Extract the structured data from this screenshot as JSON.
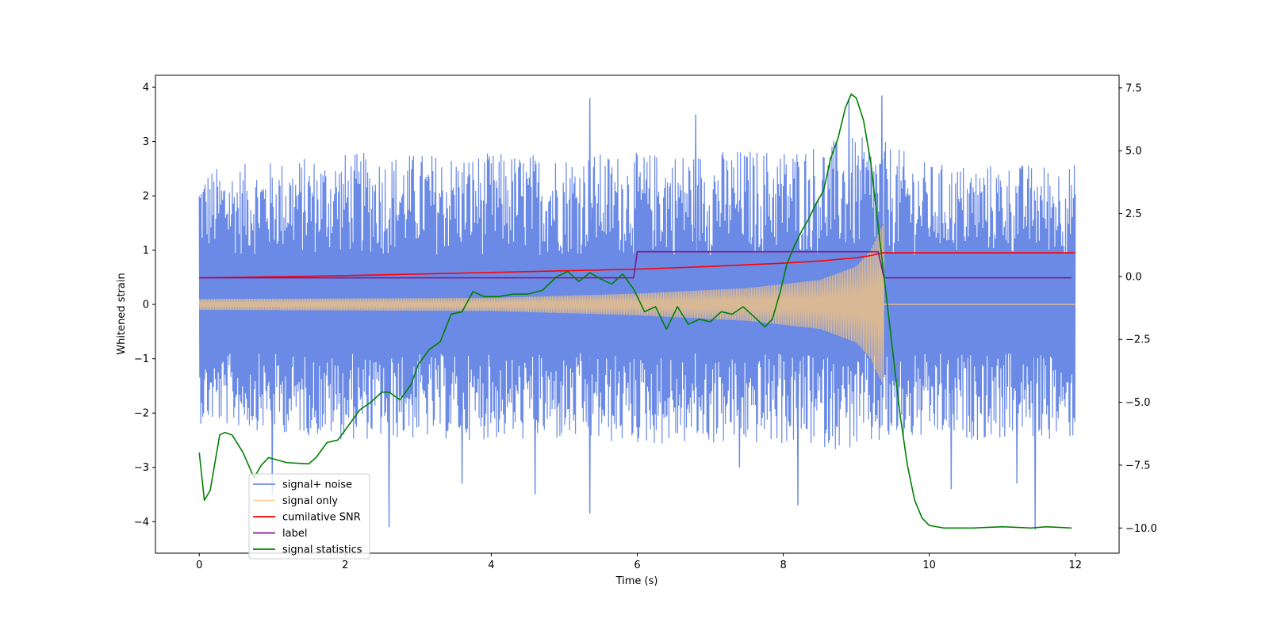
{
  "chart_data": {
    "type": "line",
    "title": "",
    "xlabel": "Time (s)",
    "ylabel": "Whitened strain",
    "y2label": "",
    "xlim": [
      -0.6,
      12.6
    ],
    "ylim": [
      -4.58,
      4.22
    ],
    "y2lim": [
      -11.0,
      8.0
    ],
    "xticks": [
      0,
      2,
      4,
      6,
      8,
      10,
      12
    ],
    "xtick_labels": [
      "0",
      "2",
      "4",
      "6",
      "8",
      "10",
      "12"
    ],
    "yticks": [
      -4,
      -3,
      -2,
      -1,
      0,
      1,
      2,
      3,
      4
    ],
    "ytick_labels": [
      "−4",
      "−3",
      "−2",
      "−1",
      "0",
      "1",
      "2",
      "3",
      "4"
    ],
    "y2ticks": [
      -10.0,
      -7.5,
      -5.0,
      -2.5,
      0.0,
      2.5,
      5.0,
      7.5
    ],
    "y2tick_labels": [
      "−10.0",
      "−7.5",
      "−5.0",
      "−2.5",
      "0.0",
      "2.5",
      "5.0",
      "7.5"
    ],
    "grid": false,
    "legend_position": "lower-left",
    "series": [
      {
        "name": "signal+ noise",
        "color": "#6a8ae6",
        "axis": "left",
        "kind": "noise-band",
        "x_range": [
          0,
          12
        ],
        "envelope_upper": [
          [
            0,
            2.5
          ],
          [
            2,
            2.8
          ],
          [
            4,
            2.8
          ],
          [
            6,
            2.8
          ],
          [
            8,
            2.9
          ],
          [
            9,
            3.1
          ],
          [
            9.4,
            3.0
          ],
          [
            10,
            2.6
          ],
          [
            12,
            2.6
          ]
        ],
        "envelope_lower": [
          [
            0,
            -2.2
          ],
          [
            2,
            -2.5
          ],
          [
            4,
            -2.5
          ],
          [
            6,
            -2.6
          ],
          [
            8,
            -2.6
          ],
          [
            9,
            -2.7
          ],
          [
            10,
            -2.5
          ],
          [
            12,
            -2.5
          ]
        ],
        "spikes": [
          [
            1.0,
            -3.5
          ],
          [
            2.6,
            -4.1
          ],
          [
            3.6,
            -3.3
          ],
          [
            4.6,
            -3.5
          ],
          [
            5.35,
            3.8
          ],
          [
            5.35,
            -3.85
          ],
          [
            6.8,
            3.5
          ],
          [
            7.4,
            -3.0
          ],
          [
            8.2,
            -3.7
          ],
          [
            8.9,
            3.8
          ],
          [
            9.35,
            3.85
          ],
          [
            11.45,
            -4.15
          ],
          [
            10.3,
            -3.4
          ],
          [
            11.2,
            -3.3
          ]
        ]
      },
      {
        "name": "signal only",
        "color": "#ffc87a",
        "axis": "left",
        "kind": "chirp",
        "x_range": [
          0,
          9.38
        ],
        "envelope": [
          [
            0,
            0.1
          ],
          [
            4,
            0.12
          ],
          [
            6,
            0.2
          ],
          [
            7.5,
            0.3
          ],
          [
            8.5,
            0.45
          ],
          [
            9.0,
            0.7
          ],
          [
            9.2,
            1.0
          ],
          [
            9.3,
            1.3
          ],
          [
            9.38,
            1.5
          ]
        ],
        "flat_after": [
          9.38,
          12
        ],
        "flat_value": 0.0
      },
      {
        "name": "cumilative SNR",
        "color": "#ff0000",
        "axis": "left",
        "points": [
          [
            0,
            0.49
          ],
          [
            1,
            0.51
          ],
          [
            2,
            0.53
          ],
          [
            3,
            0.56
          ],
          [
            4,
            0.59
          ],
          [
            5,
            0.62
          ],
          [
            6,
            0.65
          ],
          [
            7,
            0.7
          ],
          [
            8,
            0.76
          ],
          [
            8.5,
            0.8
          ],
          [
            9,
            0.86
          ],
          [
            9.2,
            0.9
          ],
          [
            9.35,
            0.95
          ],
          [
            12,
            0.95
          ]
        ]
      },
      {
        "name": "label",
        "color": "#7a1a86",
        "axis": "left",
        "points": [
          [
            0,
            0.49
          ],
          [
            5.95,
            0.49
          ],
          [
            6.0,
            0.97
          ],
          [
            9.3,
            0.97
          ],
          [
            9.38,
            0.49
          ],
          [
            11.95,
            0.49
          ]
        ]
      },
      {
        "name": "signal statistics",
        "color": "#008000",
        "axis": "right",
        "points": [
          [
            0,
            -7.0
          ],
          [
            0.07,
            -8.9
          ],
          [
            0.15,
            -8.5
          ],
          [
            0.28,
            -6.3
          ],
          [
            0.35,
            -6.2
          ],
          [
            0.45,
            -6.3
          ],
          [
            0.6,
            -7.0
          ],
          [
            0.75,
            -8.0
          ],
          [
            0.85,
            -7.5
          ],
          [
            0.95,
            -7.2
          ],
          [
            1.2,
            -7.4
          ],
          [
            1.5,
            -7.45
          ],
          [
            1.6,
            -7.2
          ],
          [
            1.75,
            -6.6
          ],
          [
            1.9,
            -6.5
          ],
          [
            2.0,
            -6.1
          ],
          [
            2.2,
            -5.3
          ],
          [
            2.35,
            -5.0
          ],
          [
            2.5,
            -4.6
          ],
          [
            2.6,
            -4.6
          ],
          [
            2.75,
            -4.9
          ],
          [
            2.9,
            -4.3
          ],
          [
            3.0,
            -3.5
          ],
          [
            3.15,
            -2.9
          ],
          [
            3.3,
            -2.6
          ],
          [
            3.45,
            -1.5
          ],
          [
            3.6,
            -1.4
          ],
          [
            3.75,
            -0.6
          ],
          [
            3.9,
            -0.8
          ],
          [
            4.1,
            -0.8
          ],
          [
            4.3,
            -0.7
          ],
          [
            4.5,
            -0.7
          ],
          [
            4.7,
            -0.55
          ],
          [
            4.9,
            0.0
          ],
          [
            5.05,
            0.2
          ],
          [
            5.2,
            -0.2
          ],
          [
            5.35,
            0.15
          ],
          [
            5.5,
            -0.1
          ],
          [
            5.65,
            -0.3
          ],
          [
            5.8,
            0.1
          ],
          [
            5.95,
            -0.5
          ],
          [
            6.1,
            -1.4
          ],
          [
            6.25,
            -1.2
          ],
          [
            6.4,
            -2.1
          ],
          [
            6.55,
            -1.2
          ],
          [
            6.7,
            -1.9
          ],
          [
            6.85,
            -1.7
          ],
          [
            7.0,
            -1.8
          ],
          [
            7.15,
            -1.4
          ],
          [
            7.3,
            -1.5
          ],
          [
            7.45,
            -1.2
          ],
          [
            7.6,
            -1.6
          ],
          [
            7.75,
            -2.0
          ],
          [
            7.85,
            -1.7
          ],
          [
            7.95,
            -0.7
          ],
          [
            8.05,
            0.5
          ],
          [
            8.15,
            1.2
          ],
          [
            8.25,
            1.8
          ],
          [
            8.35,
            2.3
          ],
          [
            8.45,
            2.9
          ],
          [
            8.55,
            3.4
          ],
          [
            8.65,
            4.7
          ],
          [
            8.75,
            5.5
          ],
          [
            8.85,
            6.7
          ],
          [
            8.93,
            7.25
          ],
          [
            9.0,
            7.1
          ],
          [
            9.1,
            6.2
          ],
          [
            9.2,
            4.5
          ],
          [
            9.3,
            2.0
          ],
          [
            9.4,
            -0.5
          ],
          [
            9.5,
            -3.0
          ],
          [
            9.6,
            -5.5
          ],
          [
            9.7,
            -7.5
          ],
          [
            9.8,
            -8.9
          ],
          [
            9.9,
            -9.6
          ],
          [
            10.0,
            -9.9
          ],
          [
            10.2,
            -10.0
          ],
          [
            10.6,
            -10.0
          ],
          [
            11.0,
            -9.95
          ],
          [
            11.4,
            -10.0
          ],
          [
            11.6,
            -9.95
          ],
          [
            11.95,
            -10.0
          ]
        ]
      }
    ]
  }
}
